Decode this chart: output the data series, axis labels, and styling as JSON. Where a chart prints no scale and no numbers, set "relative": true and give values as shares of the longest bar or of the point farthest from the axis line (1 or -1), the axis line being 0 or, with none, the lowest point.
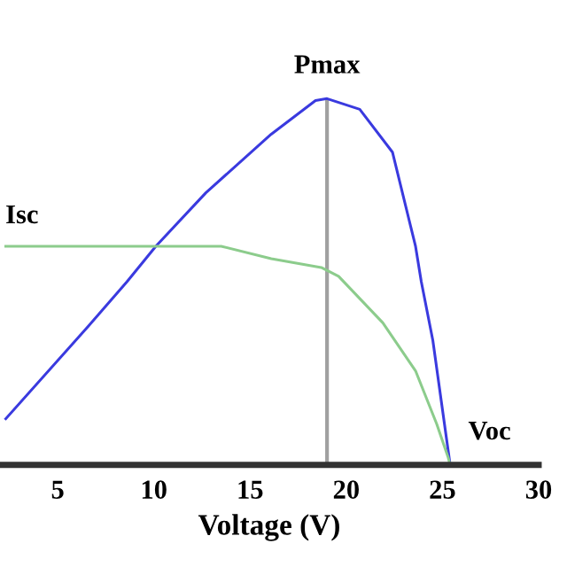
{
  "chart_data": {
    "type": "line",
    "relative": true,
    "xlabel": "Voltage (V)",
    "xlim": [
      2,
      30
    ],
    "xticks": [
      5,
      10,
      15,
      20,
      25,
      30
    ],
    "series": [
      {
        "color": "#3a3adf",
        "x": [
          2.3,
          6.6,
          8.6,
          10.1,
          12.7,
          16.1,
          18.4,
          19.0,
          20.7,
          22.4,
          23.6,
          23.9,
          24.5,
          25.4
        ],
        "values": [
          0.126,
          0.379,
          0.5,
          0.597,
          0.743,
          0.903,
          0.995,
          1.0,
          0.971,
          0.854,
          0.597,
          0.5,
          0.34,
          0
        ]
      },
      {
        "color": "#8ccc8c",
        "x": [
          2.3,
          8,
          13.5,
          16.1,
          18.7,
          19.6,
          21.9,
          23.6,
          24.7,
          25.3,
          25.4
        ],
        "values": [
          0.597,
          0.597,
          0.597,
          0.563,
          0.539,
          0.515,
          0.388,
          0.257,
          0.112,
          0.02,
          0
        ]
      }
    ],
    "ref_lines": [
      {
        "axis": "x",
        "value": 19.0,
        "color": "#a0a0a0"
      }
    ],
    "annotations": [
      {
        "text": "Pmax",
        "x": 19.0,
        "y": 1.0
      },
      {
        "text": "Voc",
        "x": 25.4,
        "y": 0
      },
      "Isc"
    ],
    "grid": false,
    "legend": false,
    "marker": "none",
    "line_style": "solid"
  }
}
